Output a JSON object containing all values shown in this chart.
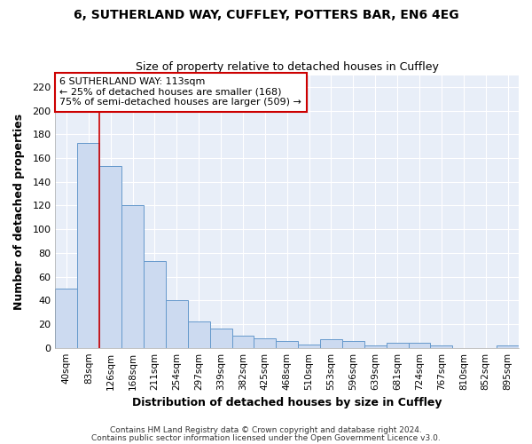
{
  "title1": "6, SUTHERLAND WAY, CUFFLEY, POTTERS BAR, EN6 4EG",
  "title2": "Size of property relative to detached houses in Cuffley",
  "xlabel": "Distribution of detached houses by size in Cuffley",
  "ylabel": "Number of detached properties",
  "categories": [
    "40sqm",
    "83sqm",
    "126sqm",
    "168sqm",
    "211sqm",
    "254sqm",
    "297sqm",
    "339sqm",
    "382sqm",
    "425sqm",
    "468sqm",
    "510sqm",
    "553sqm",
    "596sqm",
    "639sqm",
    "681sqm",
    "724sqm",
    "767sqm",
    "810sqm",
    "852sqm",
    "895sqm"
  ],
  "values": [
    50,
    173,
    153,
    120,
    73,
    40,
    22,
    16,
    10,
    8,
    6,
    3,
    7,
    6,
    2,
    4,
    4,
    2,
    0,
    0,
    2
  ],
  "bar_color": "#ccdaf0",
  "bar_edge_color": "#6699cc",
  "red_line_x": 1.5,
  "red_line_color": "#cc0000",
  "annotation_line1": "6 SUTHERLAND WAY: 113sqm",
  "annotation_line2": "← 25% of detached houses are smaller (168)",
  "annotation_line3": "75% of semi-detached houses are larger (509) →",
  "annotation_box_color": "#ffffff",
  "annotation_box_edge_color": "#cc0000",
  "ylim": [
    0,
    230
  ],
  "yticks": [
    0,
    20,
    40,
    60,
    80,
    100,
    120,
    140,
    160,
    180,
    200,
    220
  ],
  "footnote1": "Contains HM Land Registry data © Crown copyright and database right 2024.",
  "footnote2": "Contains public sector information licensed under the Open Government Licence v3.0.",
  "bg_color": "#ffffff",
  "plot_bg_color": "#e8eef8",
  "grid_color": "#ffffff"
}
